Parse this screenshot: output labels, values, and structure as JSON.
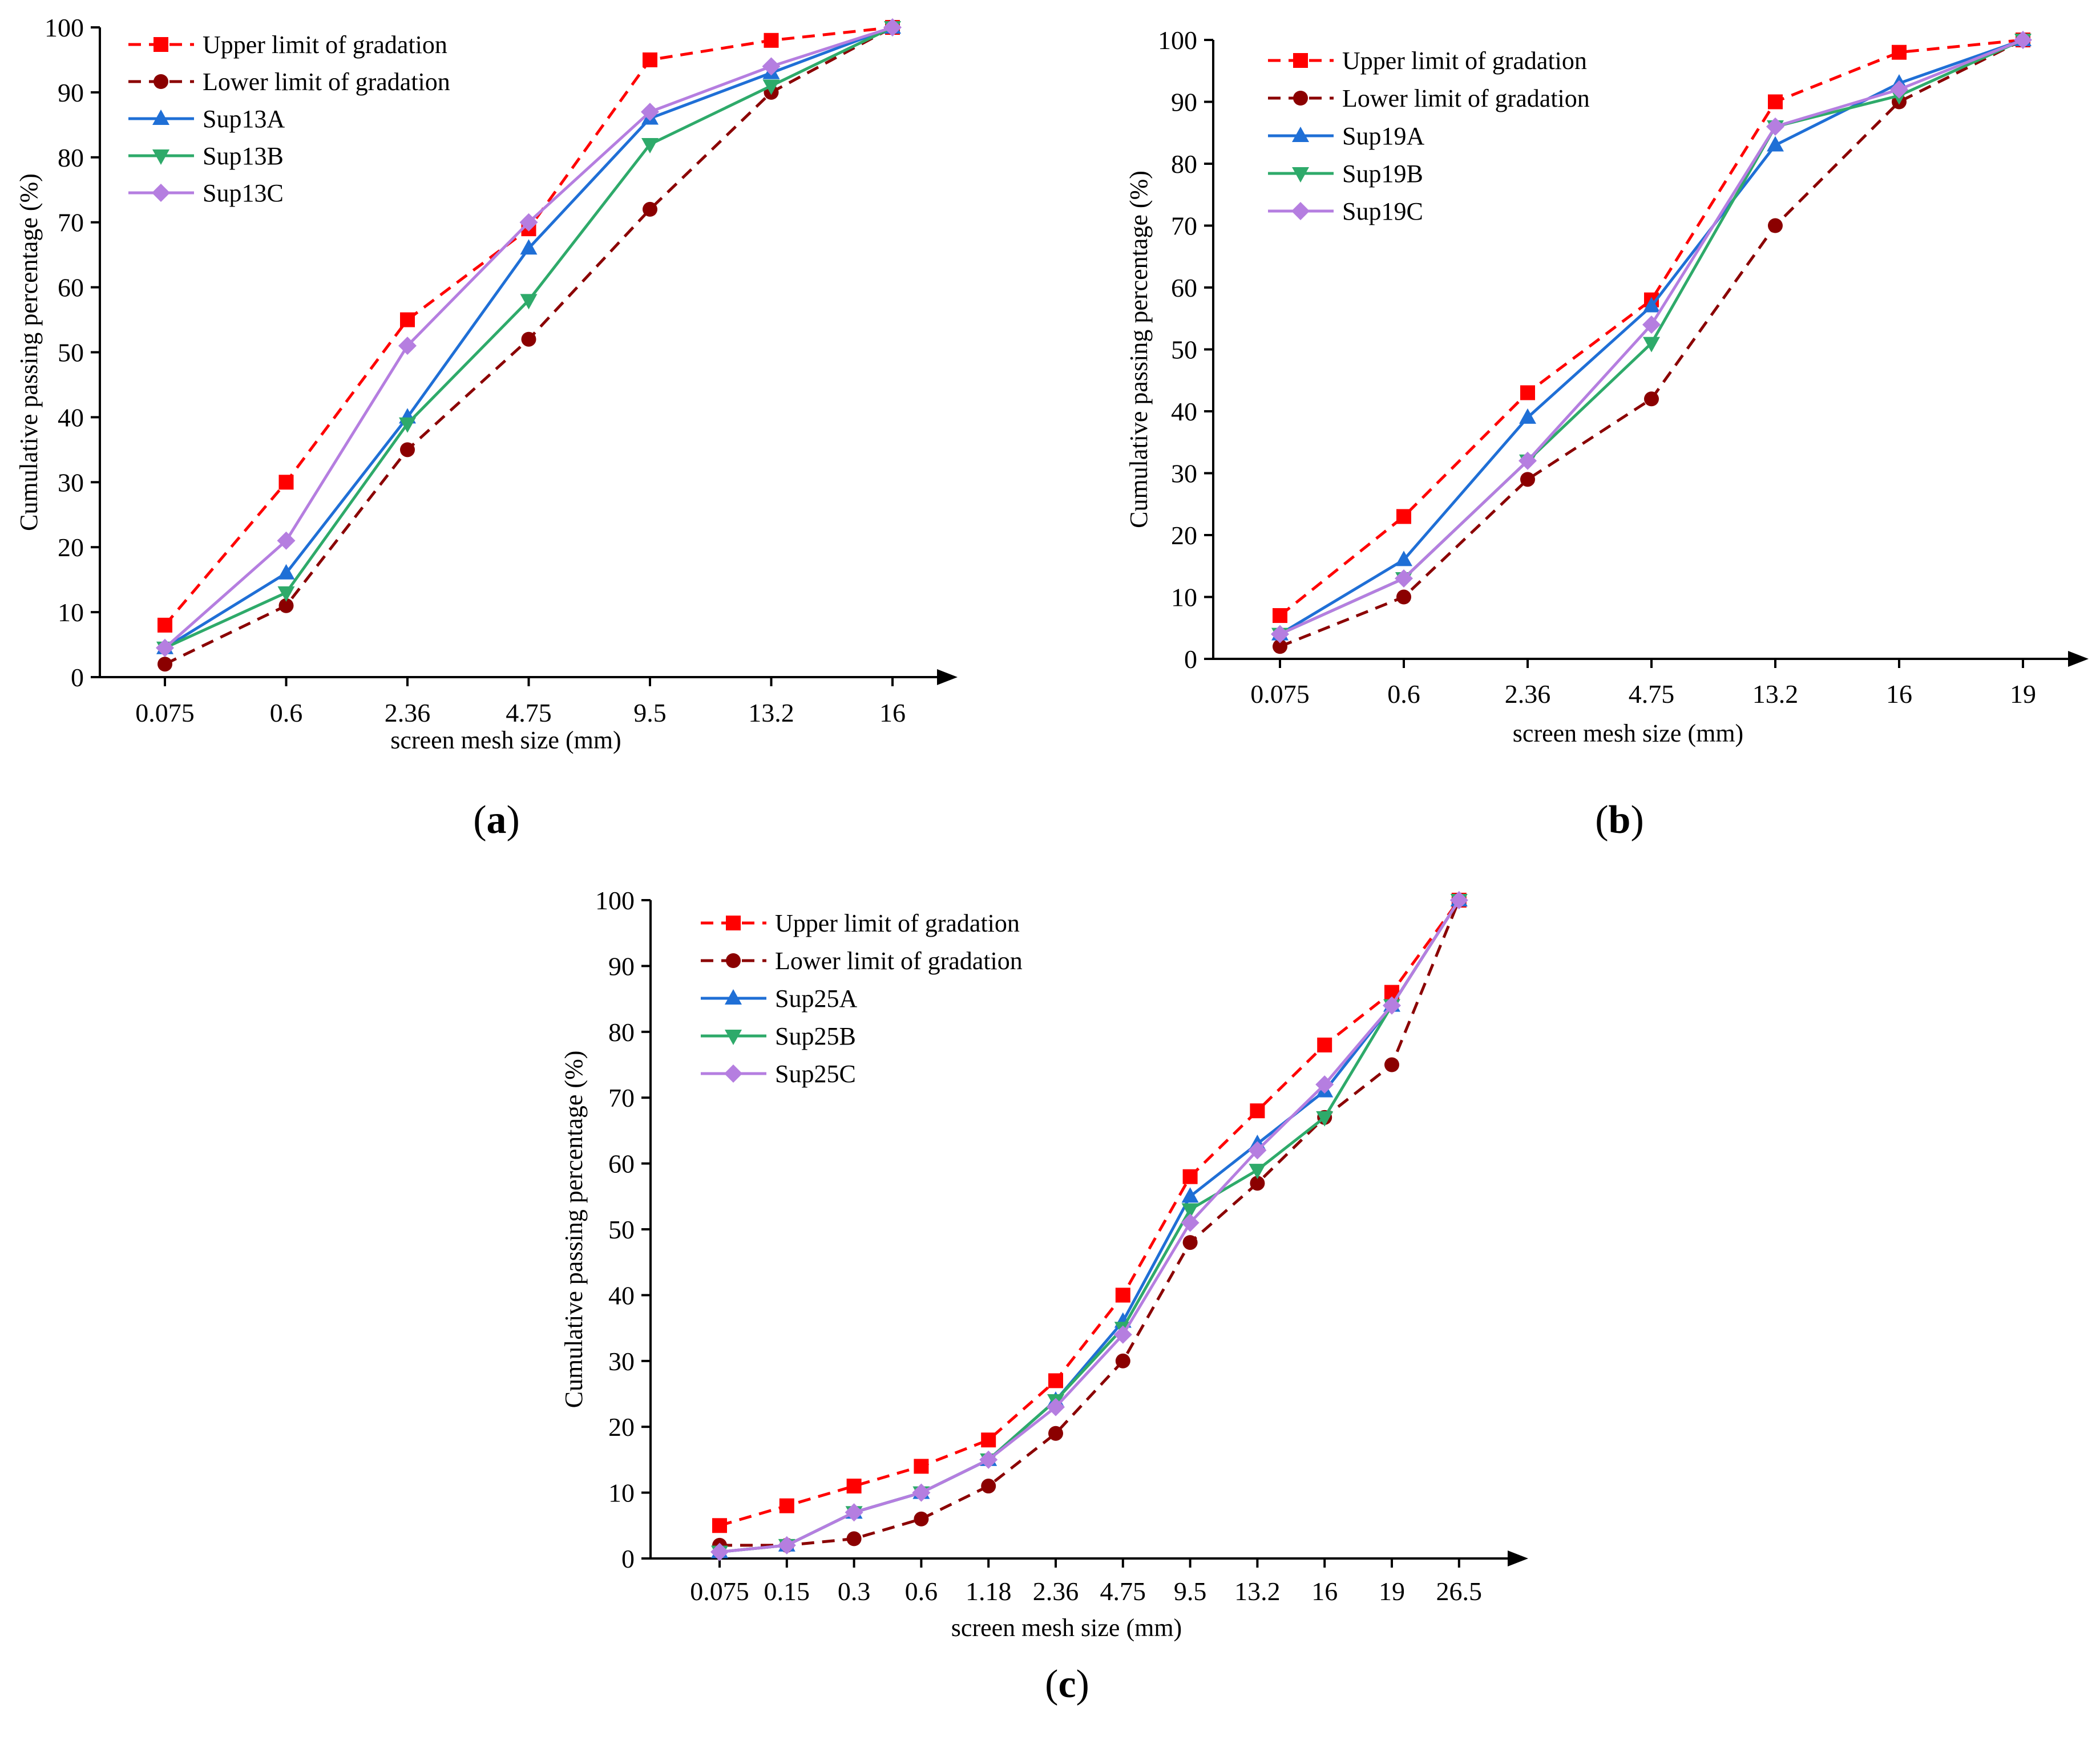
{
  "colors": {
    "upper": "#ff0000",
    "lower": "#8b0000",
    "A": "#1f6fd6",
    "B": "#2eaa6a",
    "C": "#b57ee0",
    "axis": "#000000"
  },
  "chart_data": [
    {
      "type": "line",
      "panel_label": "(a)",
      "panel_letter": "a",
      "xlabel": "screen mesh size (mm)",
      "ylabel": "Cumulative passing percentage (%)",
      "ylim": [
        0,
        100
      ],
      "yticks": [
        0,
        10,
        20,
        30,
        40,
        50,
        60,
        70,
        80,
        90,
        100
      ],
      "grid": false,
      "legend_position": "top-left",
      "x": [
        "0.075",
        "0.6",
        "2.36",
        "4.75",
        "9.5",
        "13.2",
        "16"
      ],
      "series": [
        {
          "name": "Upper limit of gradation",
          "key": "upper",
          "marker": "square",
          "dashed": true,
          "values": [
            8,
            30,
            55,
            69,
            95,
            98,
            100
          ]
        },
        {
          "name": "Lower limit of gradation",
          "key": "lower",
          "marker": "circle",
          "dashed": true,
          "values": [
            2,
            11,
            35,
            52,
            72,
            90,
            100
          ]
        },
        {
          "name": "Sup13A",
          "key": "A",
          "marker": "triangle-up",
          "dashed": false,
          "values": [
            4.5,
            16,
            40,
            66,
            86,
            93,
            100
          ]
        },
        {
          "name": "Sup13B",
          "key": "B",
          "marker": "triangle-down",
          "dashed": false,
          "values": [
            4.5,
            13,
            39,
            58,
            82,
            91,
            100
          ]
        },
        {
          "name": "Sup13C",
          "key": "C",
          "marker": "diamond",
          "dashed": false,
          "values": [
            4.5,
            21,
            51,
            70,
            87,
            94,
            100
          ]
        }
      ]
    },
    {
      "type": "line",
      "panel_label": "(b)",
      "panel_letter": "b",
      "xlabel": "screen mesh size (mm)",
      "ylabel": "Cumulative passing percentage  (%)",
      "ylim": [
        0,
        100
      ],
      "yticks": [
        0,
        10,
        20,
        30,
        40,
        50,
        60,
        70,
        80,
        90,
        100
      ],
      "grid": false,
      "legend_position": "top-left",
      "x": [
        "0.075",
        "0.6",
        "2.36",
        "4.75",
        "13.2",
        "16",
        "19"
      ],
      "series": [
        {
          "name": "Upper limit of gradation",
          "key": "upper",
          "marker": "square",
          "dashed": true,
          "values": [
            7,
            23,
            43,
            58,
            90,
            98,
            100
          ]
        },
        {
          "name": "Lower limit of gradation",
          "key": "lower",
          "marker": "circle",
          "dashed": true,
          "values": [
            2,
            10,
            29,
            42,
            70,
            90,
            100
          ]
        },
        {
          "name": "Sup19A",
          "key": "A",
          "marker": "triangle-up",
          "dashed": false,
          "values": [
            4,
            16,
            39,
            57,
            83,
            93,
            100
          ]
        },
        {
          "name": "Sup19B",
          "key": "B",
          "marker": "triangle-down",
          "dashed": false,
          "values": [
            4,
            13,
            32,
            51,
            86,
            91,
            100
          ]
        },
        {
          "name": "Sup19C",
          "key": "C",
          "marker": "diamond",
          "dashed": false,
          "values": [
            4,
            13,
            32,
            54,
            86,
            92,
            100
          ]
        }
      ]
    },
    {
      "type": "line",
      "panel_label": "(c)",
      "panel_letter": "c",
      "xlabel": "screen mesh size (mm)",
      "ylabel": "Cumulative passing percentage  (%)",
      "ylim": [
        0,
        100
      ],
      "yticks": [
        0,
        10,
        20,
        30,
        40,
        50,
        60,
        70,
        80,
        90,
        100
      ],
      "grid": false,
      "legend_position": "top-left",
      "x": [
        "0.075",
        "0.15",
        "0.3",
        "0.6",
        "1.18",
        "2.36",
        "4.75",
        "9.5",
        "13.2",
        "16",
        "19",
        "26.5"
      ],
      "series": [
        {
          "name": "Upper limit of gradation",
          "key": "upper",
          "marker": "square",
          "dashed": true,
          "values": [
            5,
            8,
            11,
            14,
            18,
            27,
            40,
            58,
            68,
            78,
            86,
            100
          ]
        },
        {
          "name": "Lower limit of gradation",
          "key": "lower",
          "marker": "circle",
          "dashed": true,
          "values": [
            2,
            2,
            3,
            6,
            11,
            19,
            30,
            48,
            57,
            67,
            75,
            100
          ]
        },
        {
          "name": "Sup25A",
          "key": "A",
          "marker": "triangle-up",
          "dashed": false,
          "values": [
            1,
            2,
            7,
            10,
            15,
            24,
            36,
            55,
            63,
            71,
            84,
            100
          ]
        },
        {
          "name": "Sup25B",
          "key": "B",
          "marker": "triangle-down",
          "dashed": false,
          "values": [
            1,
            2,
            7,
            10,
            15,
            24,
            35,
            53,
            59,
            67,
            84,
            100
          ]
        },
        {
          "name": "Sup25C",
          "key": "C",
          "marker": "diamond",
          "dashed": false,
          "values": [
            1,
            2,
            7,
            10,
            15,
            23,
            34,
            51,
            62,
            72,
            84,
            100
          ]
        }
      ]
    }
  ]
}
